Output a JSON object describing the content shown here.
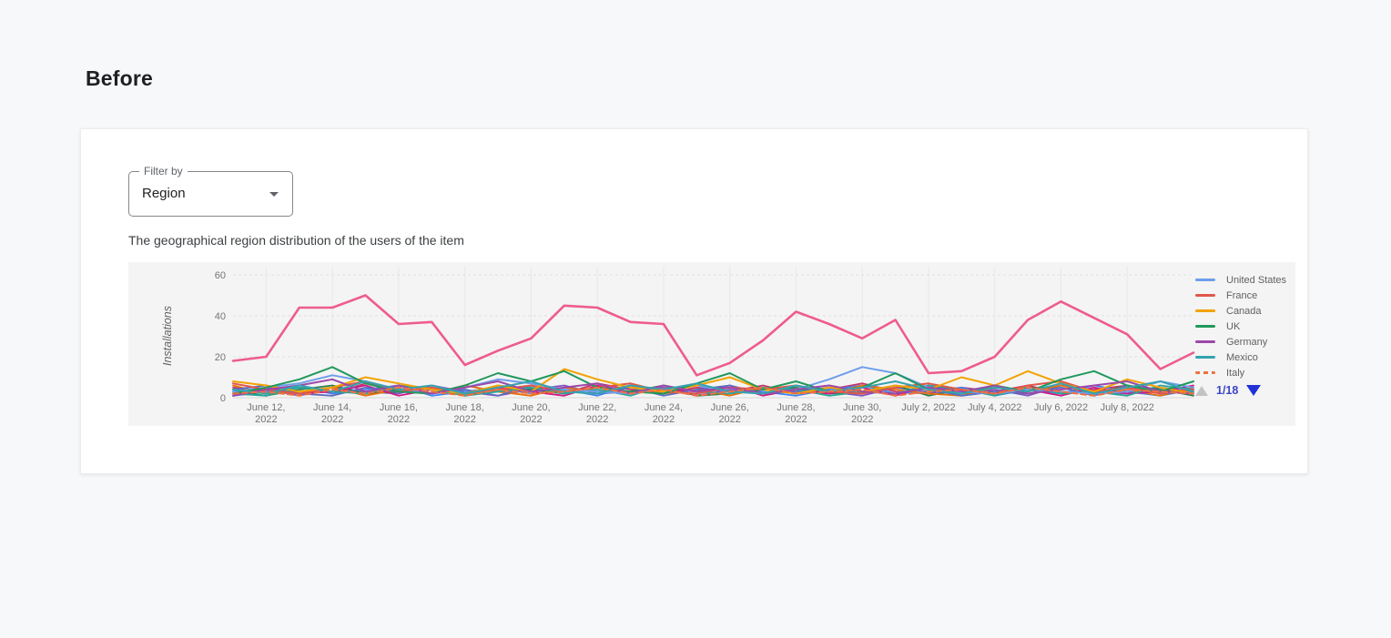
{
  "page": {
    "heading": "Before"
  },
  "panel": {
    "filter": {
      "label": "Filter by",
      "value": "Region"
    },
    "subtitle": "The geographical region distribution of the users of the item"
  },
  "chart_data": {
    "type": "line",
    "ylabel": "Installations",
    "y_max": 60,
    "y_ticks": [
      0,
      20,
      40,
      60
    ],
    "x_range": "daily points, June 11, 2022 - July 10, 2022",
    "values_note": "minor-series values estimated from pixels; lines heavily overlap below 15",
    "background": "#f4f4f4",
    "gridline_color": "#e8e8e8",
    "x_ticks": [
      {
        "i": 1,
        "lines": [
          "June 12,",
          "2022"
        ]
      },
      {
        "i": 3,
        "lines": [
          "June 14,",
          "2022"
        ]
      },
      {
        "i": 5,
        "lines": [
          "June 16,",
          "2022"
        ]
      },
      {
        "i": 7,
        "lines": [
          "June 18,",
          "2022"
        ]
      },
      {
        "i": 9,
        "lines": [
          "June 20,",
          "2022"
        ]
      },
      {
        "i": 11,
        "lines": [
          "June 22,",
          "2022"
        ]
      },
      {
        "i": 13,
        "lines": [
          "June 24,",
          "2022"
        ]
      },
      {
        "i": 15,
        "lines": [
          "June 26,",
          "2022"
        ]
      },
      {
        "i": 17,
        "lines": [
          "June 28,",
          "2022"
        ]
      },
      {
        "i": 19,
        "lines": [
          "June 30,",
          "2022"
        ]
      },
      {
        "i": 21,
        "lines": [
          "July 2, 2022"
        ]
      },
      {
        "i": 23,
        "lines": [
          "July 4, 2022"
        ]
      },
      {
        "i": 25,
        "lines": [
          "July 6, 2022"
        ]
      },
      {
        "i": 27,
        "lines": [
          "July 8, 2022"
        ]
      }
    ],
    "series": [
      {
        "name": "United States",
        "color": "#6d9eeb",
        "values": [
          3,
          5,
          7,
          11,
          8,
          4,
          2,
          5,
          9,
          7,
          4,
          3,
          2,
          4,
          6,
          3,
          2,
          4,
          9,
          15,
          12,
          5,
          3,
          2,
          4,
          3,
          2,
          3,
          8,
          5
        ]
      },
      {
        "name": "France",
        "color": "#e0564a",
        "values": [
          7,
          4,
          2,
          5,
          8,
          3,
          5,
          2,
          4,
          6,
          3,
          5,
          7,
          3,
          2,
          5,
          4,
          6,
          3,
          2,
          5,
          7,
          4,
          2,
          6,
          8,
          3,
          5,
          2,
          4
        ]
      },
      {
        "name": "Canada",
        "color": "#f2a202",
        "values": [
          8,
          6,
          3,
          5,
          10,
          7,
          4,
          2,
          6,
          3,
          14,
          9,
          5,
          3,
          6,
          10,
          4,
          2,
          5,
          3,
          6,
          4,
          10,
          6,
          13,
          7,
          3,
          9,
          5,
          2
        ]
      },
      {
        "name": "UK",
        "color": "#21985c",
        "values": [
          2,
          5,
          9,
          15,
          7,
          3,
          2,
          6,
          12,
          8,
          13,
          5,
          3,
          2,
          7,
          12,
          4,
          8,
          3,
          5,
          12,
          4,
          2,
          6,
          3,
          9,
          13,
          6,
          3,
          8
        ]
      },
      {
        "name": "Germany",
        "color": "#9c48a8",
        "values": [
          1,
          4,
          6,
          9,
          3,
          6,
          2,
          5,
          8,
          3,
          5,
          7,
          2,
          6,
          3,
          5,
          2,
          4,
          6,
          3,
          2,
          5,
          3,
          6,
          2,
          4,
          6,
          8,
          3,
          2
        ]
      },
      {
        "name": "Mexico",
        "color": "#35a2ae",
        "values": [
          4,
          2,
          6,
          3,
          8,
          4,
          6,
          2,
          5,
          8,
          3,
          2,
          6,
          4,
          7,
          3,
          2,
          6,
          3,
          5,
          8,
          4,
          2,
          5,
          3,
          7,
          2,
          5,
          8,
          3
        ]
      },
      {
        "name": "Italy",
        "color": "#ee7042",
        "dashed": true,
        "values": [
          2,
          3,
          1,
          4,
          2,
          5,
          3,
          1,
          4,
          2,
          3,
          5,
          2,
          4,
          1,
          3,
          5,
          2,
          3,
          4,
          1,
          3,
          4,
          2,
          5,
          3,
          1,
          4,
          3,
          2
        ]
      },
      {
        "name": "",
        "color": "#ee5c8c",
        "emphasis": true,
        "legend_entry_on_visible_page": false,
        "values": [
          18,
          20,
          44,
          44,
          50,
          36,
          37,
          16,
          23,
          29,
          45,
          44,
          37,
          36,
          11,
          17,
          28,
          42,
          36,
          29,
          38,
          12,
          13,
          20,
          38,
          47,
          39,
          31,
          14,
          22
        ]
      }
    ],
    "unlabeled_series": [
      {
        "color": "#c2346b",
        "values": [
          5,
          3,
          6,
          2,
          7,
          4,
          2,
          6,
          3,
          5,
          2,
          7,
          4,
          2,
          5,
          3,
          6,
          2,
          4,
          7,
          3,
          2,
          5,
          3,
          6,
          2,
          4,
          6,
          2,
          5
        ]
      },
      {
        "color": "#7e57c2",
        "values": [
          2,
          4,
          1,
          5,
          3,
          2,
          6,
          3,
          1,
          4,
          6,
          2,
          3,
          5,
          1,
          4,
          2,
          6,
          3,
          1,
          5,
          3,
          2,
          4,
          1,
          6,
          3,
          2,
          5,
          3
        ]
      },
      {
        "color": "#4285f4",
        "values": [
          1,
          3,
          5,
          2,
          4,
          6,
          1,
          3,
          5,
          2,
          4,
          1,
          6,
          3,
          2,
          5,
          3,
          1,
          4,
          6,
          2,
          3,
          5,
          1,
          4,
          2,
          6,
          3,
          1,
          4
        ]
      },
      {
        "color": "#2e7d52",
        "values": [
          3,
          1,
          4,
          6,
          2,
          3,
          5,
          1,
          6,
          4,
          2,
          5,
          3,
          6,
          1,
          2,
          4,
          5,
          2,
          3,
          6,
          1,
          4,
          2,
          5,
          3,
          2,
          6,
          4,
          1
        ]
      },
      {
        "color": "#e8710a",
        "values": [
          6,
          2,
          3,
          5,
          1,
          4,
          2,
          6,
          3,
          1,
          5,
          3,
          6,
          2,
          4,
          1,
          5,
          3,
          2,
          6,
          4,
          2,
          1,
          5,
          3,
          6,
          2,
          4,
          1,
          5
        ]
      },
      {
        "color": "#d01884",
        "values": [
          1,
          5,
          2,
          3,
          6,
          1,
          4,
          2,
          5,
          3,
          1,
          6,
          2,
          4,
          3,
          6,
          1,
          4,
          2,
          5,
          1,
          6,
          3,
          2,
          4,
          1,
          5,
          2,
          3,
          6
        ]
      },
      {
        "color": "#5c6bc0",
        "values": [
          4,
          6,
          2,
          1,
          5,
          3,
          2,
          4,
          1,
          6,
          3,
          2,
          5,
          1,
          4,
          6,
          2,
          3,
          5,
          2,
          6,
          4,
          1,
          3,
          2,
          5,
          1,
          6,
          2,
          3
        ]
      },
      {
        "color": "#26a69a",
        "values": [
          2,
          1,
          5,
          3,
          2,
          6,
          4,
          1,
          3,
          5,
          2,
          4,
          1,
          6,
          3,
          2,
          5,
          4,
          1,
          3,
          2,
          6,
          4,
          1,
          5,
          2,
          3,
          1,
          6,
          4
        ]
      }
    ],
    "legend": {
      "position": "right"
    },
    "pagination": {
      "label": "1/18",
      "up_enabled": false,
      "down_enabled": true,
      "active_color": "#2231d6",
      "disabled_color": "#c3c3c3"
    }
  }
}
